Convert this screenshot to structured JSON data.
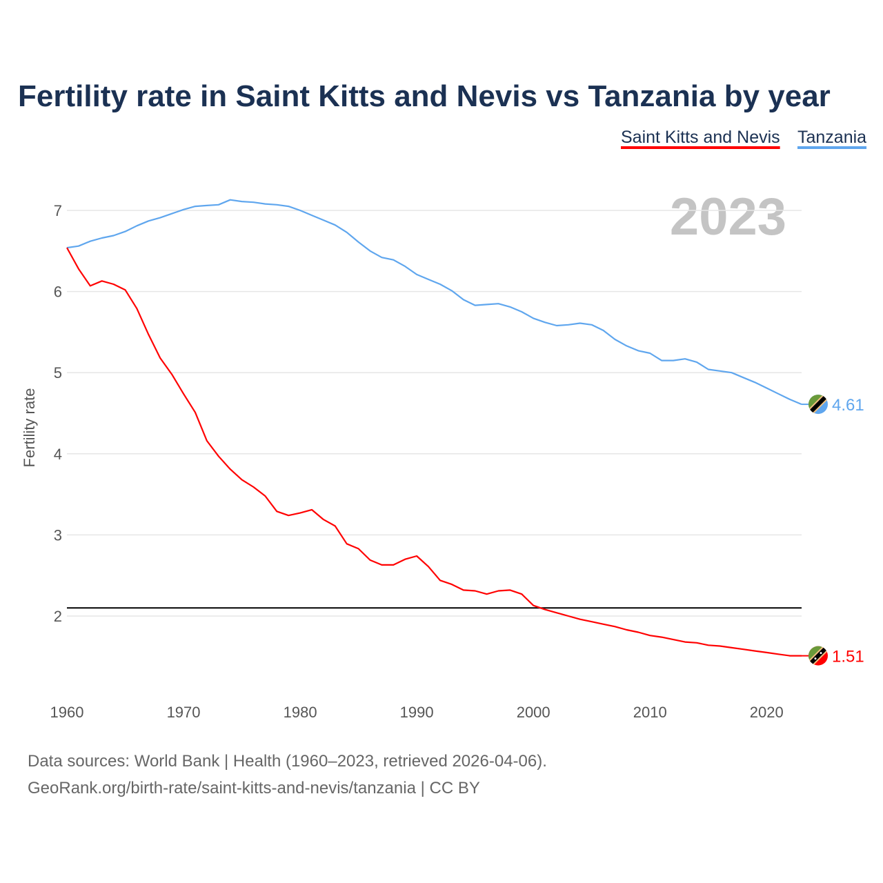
{
  "chart_data": {
    "type": "line",
    "title": "Fertility rate in Saint Kitts and Nevis vs Tanzania by year",
    "xlabel": "",
    "ylabel": "Fertility rate",
    "xlim": [
      1960,
      2023
    ],
    "ylim": [
      1.0,
      7.5
    ],
    "x_ticks": [
      1960,
      1970,
      1980,
      1990,
      2000,
      2010,
      2020
    ],
    "y_ticks": [
      2,
      3,
      4,
      5,
      6,
      7
    ],
    "grid": true,
    "legend_position": "top-right",
    "current_year_label": "2023",
    "reference_line": {
      "value": 2.1,
      "color": "#000000"
    },
    "x": [
      1960,
      1961,
      1962,
      1963,
      1964,
      1965,
      1966,
      1967,
      1968,
      1969,
      1970,
      1971,
      1972,
      1973,
      1974,
      1975,
      1976,
      1977,
      1978,
      1979,
      1980,
      1981,
      1982,
      1983,
      1984,
      1985,
      1986,
      1987,
      1988,
      1989,
      1990,
      1991,
      1992,
      1993,
      1994,
      1995,
      1996,
      1997,
      1998,
      1999,
      2000,
      2001,
      2002,
      2003,
      2004,
      2005,
      2006,
      2007,
      2008,
      2009,
      2010,
      2011,
      2012,
      2013,
      2014,
      2015,
      2016,
      2017,
      2018,
      2019,
      2020,
      2021,
      2022,
      2023
    ],
    "series": [
      {
        "name": "Saint Kitts and Nevis",
        "color": "#ff0000",
        "end_label": "1.51",
        "flag_icon": "saint-kitts-and-nevis-flag-icon",
        "values": [
          6.54,
          6.28,
          6.07,
          6.13,
          6.09,
          6.02,
          5.79,
          5.47,
          5.18,
          4.98,
          4.74,
          4.51,
          4.16,
          3.97,
          3.81,
          3.68,
          3.59,
          3.48,
          3.29,
          3.24,
          3.27,
          3.31,
          3.19,
          3.11,
          2.89,
          2.83,
          2.69,
          2.63,
          2.63,
          2.7,
          2.74,
          2.61,
          2.44,
          2.39,
          2.32,
          2.31,
          2.27,
          2.31,
          2.32,
          2.27,
          2.13,
          2.08,
          2.04,
          2.0,
          1.96,
          1.93,
          1.9,
          1.87,
          1.83,
          1.8,
          1.76,
          1.74,
          1.71,
          1.68,
          1.67,
          1.64,
          1.63,
          1.61,
          1.59,
          1.57,
          1.55,
          1.53,
          1.51,
          1.51
        ]
      },
      {
        "name": "Tanzania",
        "color": "#5fa6ee",
        "end_label": "4.61",
        "flag_icon": "tanzania-flag-icon",
        "values": [
          6.54,
          6.56,
          6.62,
          6.66,
          6.69,
          6.74,
          6.81,
          6.87,
          6.91,
          6.96,
          7.01,
          7.05,
          7.06,
          7.07,
          7.13,
          7.11,
          7.1,
          7.08,
          7.07,
          7.05,
          7.0,
          6.94,
          6.88,
          6.82,
          6.73,
          6.61,
          6.5,
          6.42,
          6.39,
          6.31,
          6.21,
          6.15,
          6.09,
          6.01,
          5.9,
          5.83,
          5.84,
          5.85,
          5.81,
          5.75,
          5.67,
          5.62,
          5.58,
          5.59,
          5.61,
          5.59,
          5.52,
          5.41,
          5.33,
          5.27,
          5.24,
          5.15,
          5.15,
          5.17,
          5.13,
          5.04,
          5.02,
          5.0,
          4.94,
          4.88,
          4.81,
          4.74,
          4.67,
          4.61
        ]
      }
    ]
  },
  "footer": {
    "source_line": "Data sources: World Bank | Health (1960–2023, retrieved 2026-04-06).",
    "url_line": "GeoRank.org/birth-rate/saint-kitts-and-nevis/tanzania | CC BY"
  }
}
